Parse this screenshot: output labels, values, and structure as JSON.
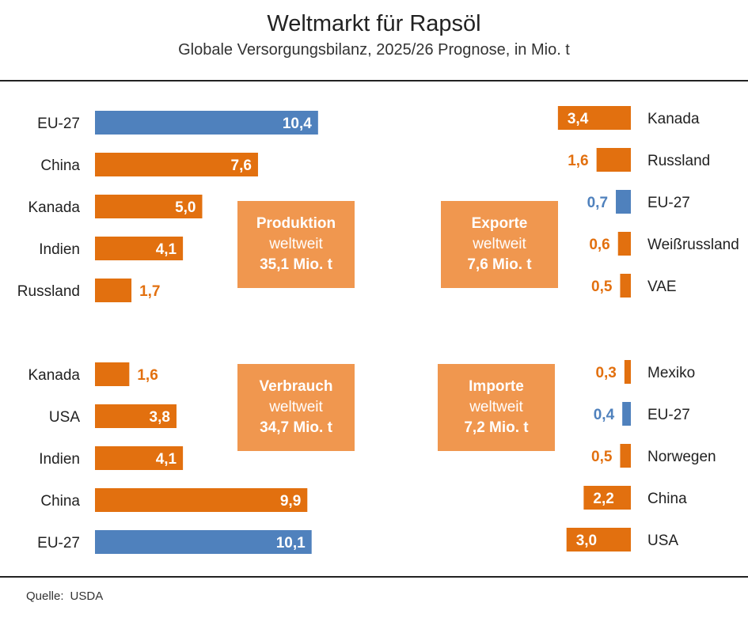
{
  "header": {
    "title": "Weltmarkt für Rapsöl",
    "subtitle": "Globale Versorgungsbilanz, 2025/26 Prognose, in Mio. t"
  },
  "footer": {
    "source_label": "Quelle:",
    "source_value": "USDA"
  },
  "colors": {
    "orange": "#e2700f",
    "blue": "#4f81bd",
    "box": "#f0974f",
    "white": "#ffffff"
  },
  "boxes": {
    "produktion": {
      "heading": "Produktion",
      "sub": "weltweit",
      "total": "35,1 Mio. t"
    },
    "exporte": {
      "heading": "Exporte",
      "sub": "weltweit",
      "total": "7,6 Mio. t"
    },
    "verbrauch": {
      "heading": "Verbrauch",
      "sub": "weltweit",
      "total": "34,7 Mio. t"
    },
    "importe": {
      "heading": "Importe",
      "sub": "weltweit",
      "total": "7,2 Mio. t"
    }
  },
  "chart_data": [
    {
      "type": "bar",
      "title": "Produktion",
      "unit": "Mio. t",
      "orientation": "horizontal",
      "categories": [
        "EU-27",
        "China",
        "Kanada",
        "Indien",
        "Russland"
      ],
      "values": [
        10.4,
        7.6,
        5.0,
        4.1,
        1.7
      ],
      "labels": [
        "10,4",
        "7,6",
        "5,0",
        "4,1",
        "1,7"
      ],
      "highlight": [
        "EU-27"
      ]
    },
    {
      "type": "bar",
      "title": "Exporte",
      "unit": "Mio. t",
      "orientation": "horizontal",
      "categories": [
        "Kanada",
        "Russland",
        "EU-27",
        "Weißrussland",
        "VAE"
      ],
      "values": [
        3.4,
        1.6,
        0.7,
        0.6,
        0.5
      ],
      "labels": [
        "3,4",
        "1,6",
        "0,7",
        "0,6",
        "0,5"
      ],
      "highlight": [
        "EU-27"
      ]
    },
    {
      "type": "bar",
      "title": "Verbrauch",
      "unit": "Mio. t",
      "orientation": "horizontal",
      "categories": [
        "Kanada",
        "USA",
        "Indien",
        "China",
        "EU-27"
      ],
      "values": [
        1.6,
        3.8,
        4.1,
        9.9,
        10.1
      ],
      "labels": [
        "1,6",
        "3,8",
        "4,1",
        "9,9",
        "10,1"
      ],
      "highlight": [
        "EU-27"
      ]
    },
    {
      "type": "bar",
      "title": "Importe",
      "unit": "Mio. t",
      "orientation": "horizontal",
      "categories": [
        "Mexiko",
        "EU-27",
        "Norwegen",
        "China",
        "USA"
      ],
      "values": [
        0.3,
        0.4,
        0.5,
        2.2,
        3.0
      ],
      "labels": [
        "0,3",
        "0,4",
        "0,5",
        "2,2",
        "3,0"
      ],
      "highlight": [
        "EU-27"
      ]
    }
  ]
}
